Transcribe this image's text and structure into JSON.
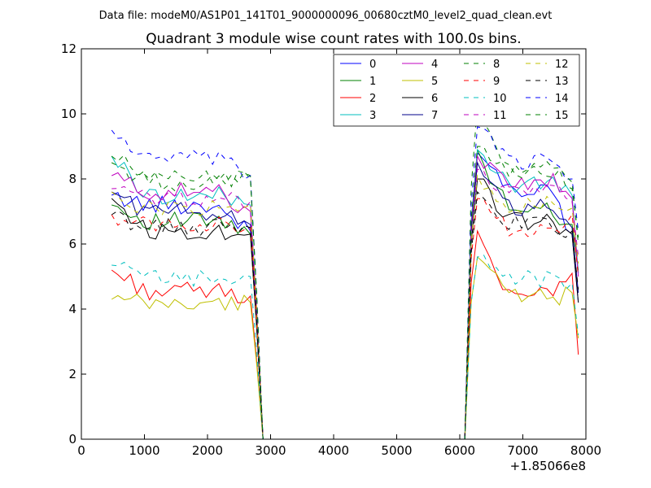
{
  "chart_data": {
    "type": "line",
    "header": "Data file: modeM0/AS1P01_141T01_9000000096_00680cztM0_level2_quad_clean.evt",
    "title": "Quadrant 3 module wise count rates with 100.0s bins.",
    "xlabel": "",
    "ylabel": "",
    "x_offset_label": "+1.85066e8",
    "xlim": [
      0,
      8000
    ],
    "ylim": [
      0,
      12
    ],
    "xticks": [
      0,
      1000,
      2000,
      3000,
      4000,
      5000,
      6000,
      7000,
      8000
    ],
    "xtick_labels": [
      "0",
      "1000",
      "2000",
      "3000",
      "4000",
      "5000",
      "6000",
      "7000",
      "8000"
    ],
    "yticks": [
      0,
      2,
      4,
      6,
      8,
      10,
      12
    ],
    "ytick_labels": [
      "0",
      "2",
      "4",
      "6",
      "8",
      "10",
      "12"
    ],
    "grid": false,
    "legend_position": "top-right",
    "legend_columns": 4,
    "segments": {
      "a": [
        480,
        2680
      ],
      "b": [
        6280,
        7780
      ],
      "edges": {
        "rise_start": 2780,
        "zero_start": 2880,
        "zero_end": 6080,
        "peak": 6180
      }
    },
    "series": [
      {
        "name": "0",
        "color": "#0000ff",
        "dash": "solid",
        "a_level": 7.2,
        "b_level": 7.6,
        "a_start": 7.5,
        "b_start": 8.8,
        "a_end": 6.4,
        "b_end": 6.3,
        "zero_end": 4.2
      },
      {
        "name": "1",
        "color": "#008000",
        "dash": "solid",
        "a_level": 6.7,
        "b_level": 7.0,
        "a_start": 7.2,
        "b_start": 8.9,
        "a_end": 6.3,
        "b_end": 6.6,
        "zero_end": 5.2
      },
      {
        "name": "2",
        "color": "#ff0000",
        "dash": "solid",
        "a_level": 4.55,
        "b_level": 4.5,
        "a_start": 5.2,
        "b_start": 6.4,
        "a_end": 4.4,
        "b_end": 5.1,
        "zero_end": 2.6
      },
      {
        "name": "3",
        "color": "#00bfbf",
        "dash": "solid",
        "a_level": 7.5,
        "b_level": 7.8,
        "a_start": 8.7,
        "b_start": 8.9,
        "a_end": 7.2,
        "b_end": 7.5,
        "zero_end": 5.1
      },
      {
        "name": "4",
        "color": "#bf00bf",
        "dash": "solid",
        "a_level": 7.6,
        "b_level": 7.9,
        "a_start": 8.1,
        "b_start": 8.7,
        "a_end": 7.0,
        "b_end": 7.4,
        "zero_end": 5.0
      },
      {
        "name": "5",
        "color": "#bfbf00",
        "dash": "solid",
        "a_level": 4.15,
        "b_level": 4.35,
        "a_start": 4.3,
        "b_start": 5.6,
        "a_end": 4.2,
        "b_end": 4.5,
        "zero_end": 3.1
      },
      {
        "name": "6",
        "color": "#000000",
        "dash": "solid",
        "a_level": 6.4,
        "b_level": 6.7,
        "a_start": 7.4,
        "b_start": 8.0,
        "a_end": 6.3,
        "b_end": 6.3,
        "zero_end": 4.2
      },
      {
        "name": "7",
        "color": "#00008b",
        "dash": "solid",
        "a_level": 7.0,
        "b_level": 7.1,
        "a_start": 7.6,
        "b_start": 8.5,
        "a_end": 6.6,
        "b_end": 6.5,
        "zero_end": 4.5
      },
      {
        "name": "8",
        "color": "#008000",
        "dash": "dashed",
        "a_level": 7.9,
        "b_level": 8.2,
        "a_start": 8.5,
        "b_start": 10.3,
        "a_end": 8.1,
        "b_end": 7.7,
        "zero_end": 6.2
      },
      {
        "name": "9",
        "color": "#ff0000",
        "dash": "dashed",
        "a_level": 6.6,
        "b_level": 6.5,
        "a_start": 6.9,
        "b_start": 7.4,
        "a_end": 6.5,
        "b_end": 6.9,
        "zero_end": 5.0
      },
      {
        "name": "10",
        "color": "#00bfbf",
        "dash": "dashed",
        "a_level": 4.95,
        "b_level": 4.9,
        "a_start": 5.35,
        "b_start": 5.6,
        "a_end": 5.0,
        "b_end": 4.8,
        "zero_end": 3.2
      },
      {
        "name": "11",
        "color": "#bf00bf",
        "dash": "dashed",
        "a_level": 7.4,
        "b_level": 7.6,
        "a_start": 7.7,
        "b_start": 8.3,
        "a_end": 7.3,
        "b_end": 7.3,
        "zero_end": 5.6
      },
      {
        "name": "12",
        "color": "#bfbf00",
        "dash": "dashed",
        "a_level": 7.1,
        "b_level": 7.2,
        "a_start": 7.6,
        "b_start": 8.1,
        "a_end": 7.2,
        "b_end": 7.1,
        "zero_end": 5.4
      },
      {
        "name": "13",
        "color": "#000000",
        "dash": "dashed",
        "a_level": 6.5,
        "b_level": 6.6,
        "a_start": 6.9,
        "b_start": 7.6,
        "a_end": 6.5,
        "b_end": 6.4,
        "zero_end": 4.6
      },
      {
        "name": "14",
        "color": "#0000ff",
        "dash": "dashed",
        "a_level": 8.6,
        "b_level": 8.5,
        "a_start": 9.5,
        "b_start": 9.6,
        "a_end": 8.1,
        "b_end": 8.0,
        "zero_end": 6.4
      },
      {
        "name": "15",
        "color": "#008000",
        "dash": "dashed",
        "a_level": 8.1,
        "b_level": 8.3,
        "a_start": 8.7,
        "b_start": 9.0,
        "a_end": 8.0,
        "b_end": 7.9,
        "zero_end": 6.0
      }
    ]
  }
}
